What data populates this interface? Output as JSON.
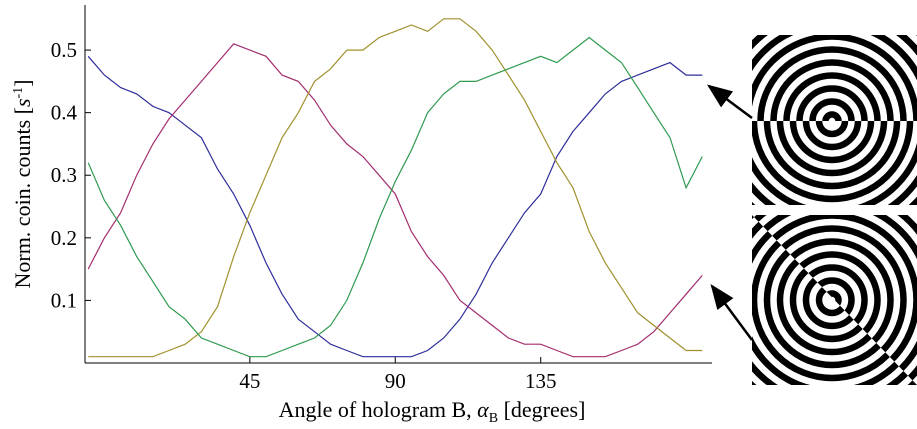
{
  "chart_data": {
    "type": "line",
    "y_label": {
      "text": "Norm. coin. counts [",
      "unit": "s",
      "exponent": "-1",
      "close": "]"
    },
    "x_label": {
      "text": "Angle of hologram B, ",
      "symbol": "α",
      "subscript": "B",
      "unit": " [degrees]"
    },
    "x": [
      -5,
      0,
      5,
      10,
      15,
      20,
      25,
      30,
      35,
      40,
      45,
      50,
      55,
      60,
      65,
      70,
      75,
      80,
      85,
      90,
      95,
      100,
      105,
      110,
      115,
      120,
      125,
      130,
      135,
      140,
      145,
      150,
      155,
      160,
      165,
      170,
      175,
      180,
      185
    ],
    "series": [
      {
        "color": "#2e2e9a",
        "values": [
          0.49,
          0.46,
          0.44,
          0.43,
          0.41,
          0.4,
          0.38,
          0.36,
          0.31,
          0.27,
          0.22,
          0.16,
          0.11,
          0.07,
          0.05,
          0.03,
          0.02,
          0.01,
          0.01,
          0.01,
          0.01,
          0.02,
          0.04,
          0.07,
          0.11,
          0.16,
          0.2,
          0.24,
          0.27,
          0.33,
          0.37,
          0.4,
          0.43,
          0.45,
          0.46,
          0.47,
          0.48,
          0.46,
          0.46
        ]
      },
      {
        "color": "#a32d6e",
        "values": [
          0.15,
          0.2,
          0.24,
          0.3,
          0.35,
          0.39,
          0.42,
          0.45,
          0.48,
          0.51,
          0.5,
          0.49,
          0.46,
          0.45,
          0.42,
          0.38,
          0.35,
          0.33,
          0.3,
          0.27,
          0.21,
          0.17,
          0.14,
          0.1,
          0.08,
          0.06,
          0.04,
          0.03,
          0.03,
          0.02,
          0.01,
          0.01,
          0.01,
          0.02,
          0.03,
          0.05,
          0.08,
          0.11,
          0.14
        ]
      },
      {
        "color": "#a0912e",
        "values": [
          0.01,
          0.01,
          0.01,
          0.01,
          0.01,
          0.02,
          0.03,
          0.05,
          0.09,
          0.17,
          0.24,
          0.3,
          0.36,
          0.4,
          0.45,
          0.47,
          0.5,
          0.5,
          0.52,
          0.53,
          0.54,
          0.53,
          0.55,
          0.55,
          0.53,
          0.5,
          0.46,
          0.42,
          0.37,
          0.32,
          0.28,
          0.21,
          0.16,
          0.12,
          0.08,
          0.06,
          0.04,
          0.02,
          0.02
        ]
      },
      {
        "color": "#2e9a4e",
        "values": [
          0.32,
          0.26,
          0.22,
          0.17,
          0.13,
          0.09,
          0.07,
          0.04,
          0.03,
          0.02,
          0.01,
          0.01,
          0.02,
          0.03,
          0.04,
          0.06,
          0.1,
          0.16,
          0.23,
          0.29,
          0.34,
          0.4,
          0.43,
          0.45,
          0.45,
          0.46,
          0.47,
          0.48,
          0.49,
          0.48,
          0.5,
          0.52,
          0.5,
          0.48,
          0.44,
          0.4,
          0.36,
          0.28,
          0.33
        ]
      }
    ],
    "xlim": [
      -6,
      188
    ],
    "ylim": [
      0,
      0.572
    ],
    "xticks": [
      45,
      90,
      135
    ],
    "yticks": [
      0.1,
      0.2,
      0.3,
      0.4,
      0.5
    ],
    "grid": false
  }
}
